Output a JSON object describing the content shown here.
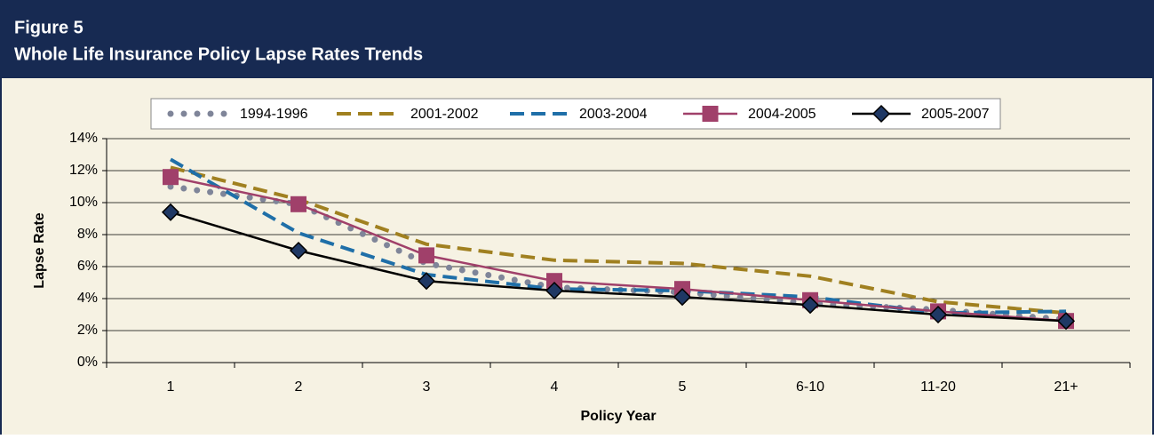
{
  "chart_data": {
    "type": "line",
    "figure_label": "Figure 5",
    "title": "Whole Life Insurance Policy Lapse Rates Trends",
    "x_label": "Policy Year",
    "y_label": "Lapse Rate",
    "categories": [
      "1",
      "2",
      "3",
      "4",
      "5",
      "6-10",
      "11-20",
      "21+"
    ],
    "series": [
      {
        "name": "1994-1996",
        "color": "#7f8599",
        "line_style": "dotted",
        "values": [
          11.0,
          9.9,
          6.2,
          4.7,
          4.4,
          3.7,
          3.3,
          2.7
        ]
      },
      {
        "name": "2001-2002",
        "color": "#a08020",
        "line_style": "dashed",
        "values": [
          12.2,
          10.2,
          7.4,
          6.4,
          6.2,
          5.4,
          3.8,
          3.1
        ]
      },
      {
        "name": "2003-2004",
        "color": "#1f6fa8",
        "line_style": "dashed",
        "values": [
          12.7,
          8.1,
          5.5,
          4.6,
          4.5,
          4.1,
          3.1,
          3.2
        ]
      },
      {
        "name": "2004-2005",
        "color": "#a0406a",
        "line_style": "solid",
        "marker": "square",
        "values": [
          11.6,
          9.9,
          6.7,
          5.1,
          4.6,
          3.9,
          3.2,
          2.6
        ]
      },
      {
        "name": "2005-2007",
        "color": "#000000",
        "marker_fill": "#1f3864",
        "line_style": "solid",
        "marker": "diamond",
        "values": [
          9.4,
          7.0,
          5.1,
          4.5,
          4.1,
          3.6,
          3.0,
          2.6
        ]
      }
    ],
    "ylim": [
      0,
      14
    ],
    "yticks": [
      {
        "value": 0,
        "label": "0%"
      },
      {
        "value": 2,
        "label": "2%"
      },
      {
        "value": 4,
        "label": "4%"
      },
      {
        "value": 6,
        "label": "6%"
      },
      {
        "value": 8,
        "label": "8%"
      },
      {
        "value": 10,
        "label": "10%"
      },
      {
        "value": 12,
        "label": "12%"
      },
      {
        "value": 14,
        "label": "14%"
      }
    ],
    "grid": true,
    "legend": "top"
  }
}
